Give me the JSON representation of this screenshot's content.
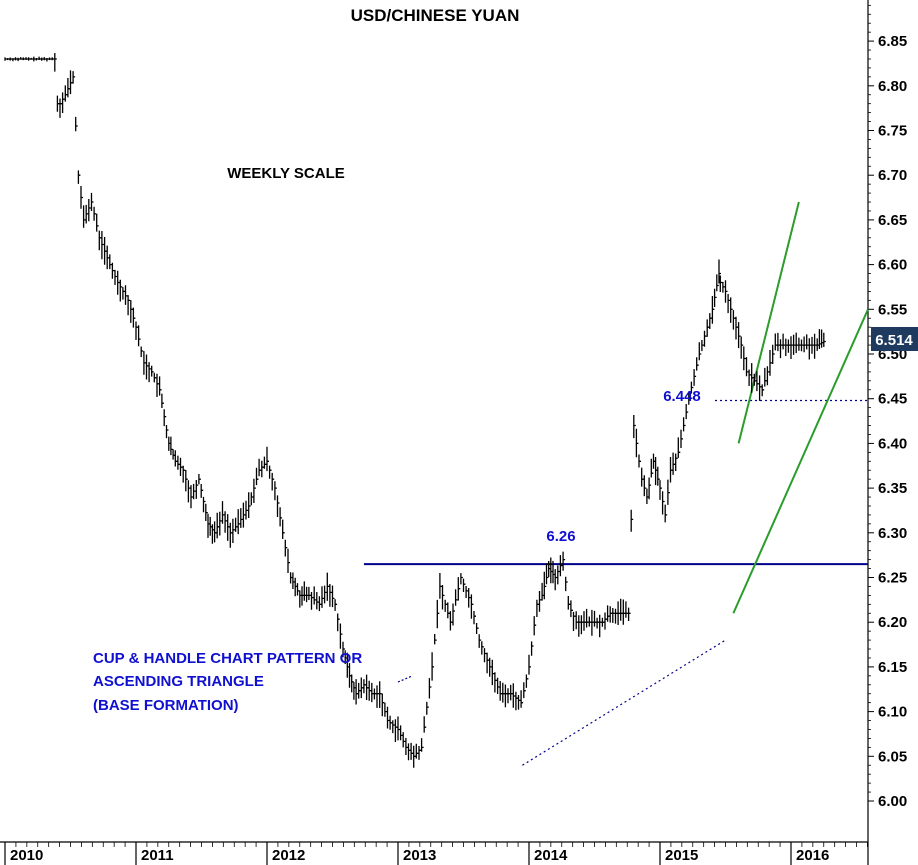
{
  "chart_data": {
    "type": "line",
    "title": "USD/CHINESE YUAN",
    "scale_note": "WEEKLY SCALE",
    "xlabel": "",
    "ylabel": "",
    "ylim": [
      5.96,
      6.92
    ],
    "xlim": [
      2010.0,
      2016.6
    ],
    "y_ticks": [
      "6.00",
      "6.05",
      "6.10",
      "6.15",
      "6.20",
      "6.25",
      "6.30",
      "6.35",
      "6.40",
      "6.45",
      "6.50",
      "6.55",
      "6.60",
      "6.65",
      "6.70",
      "6.75",
      "6.80",
      "6.85"
    ],
    "x_ticks": [
      "2010",
      "2011",
      "2012",
      "2013",
      "2014",
      "2015",
      "2016"
    ],
    "grid": false,
    "series": [
      {
        "x": [
          2010.0,
          2010.1,
          2010.2,
          2010.3,
          2010.38,
          2010.4,
          2010.42,
          2010.46,
          2010.52,
          2010.56,
          2010.6,
          2010.66,
          2010.72,
          2010.8,
          2010.86,
          2010.94,
          2011.0,
          2011.06,
          2011.12,
          2011.18,
          2011.25,
          2011.3,
          2011.36,
          2011.42,
          2011.48,
          2011.55,
          2011.6,
          2011.66,
          2011.72,
          2011.78,
          2011.86,
          2011.94,
          2012.0,
          2012.06,
          2012.12,
          2012.18,
          2012.25,
          2012.32,
          2012.4,
          2012.46,
          2012.52,
          2012.58,
          2012.63,
          2012.68,
          2012.74,
          2012.8,
          2012.86,
          2012.92,
          2013.0,
          2013.06,
          2013.12,
          2013.18,
          2013.26,
          2013.32,
          2013.4,
          2013.48,
          2013.56,
          2013.62,
          2013.7,
          2013.78,
          2013.86,
          2013.94,
          2014.0,
          2014.06,
          2014.1,
          2014.15,
          2014.2,
          2014.26,
          2014.3,
          2014.36,
          2014.42,
          2014.48,
          2014.56,
          2014.62,
          2014.7,
          2014.76,
          2014.8,
          2014.86,
          2014.9,
          2014.95,
          2015.0,
          2015.04,
          2015.08,
          2015.14,
          2015.22,
          2015.3,
          2015.4,
          2015.45,
          2015.46,
          2015.5,
          2015.56,
          2015.62,
          2015.66,
          2015.72,
          2015.78,
          2015.84,
          2015.88,
          2015.9,
          2015.94,
          2015.98,
          2016.04,
          2016.08,
          2016.12,
          2016.16,
          2016.2,
          2016.25
        ],
        "values": [
          6.83,
          6.83,
          6.83,
          6.83,
          6.83,
          6.78,
          6.78,
          6.79,
          6.81,
          6.7,
          6.65,
          6.67,
          6.63,
          6.6,
          6.58,
          6.56,
          6.53,
          6.49,
          6.48,
          6.46,
          6.4,
          6.38,
          6.37,
          6.34,
          6.36,
          6.31,
          6.3,
          6.32,
          6.3,
          6.31,
          6.33,
          6.37,
          6.38,
          6.35,
          6.3,
          6.25,
          6.23,
          6.23,
          6.22,
          6.24,
          6.22,
          6.17,
          6.14,
          6.12,
          6.13,
          6.12,
          6.12,
          6.09,
          6.08,
          6.06,
          6.05,
          6.06,
          6.15,
          6.24,
          6.2,
          6.25,
          6.22,
          6.18,
          6.15,
          6.12,
          6.12,
          6.11,
          6.15,
          6.22,
          6.23,
          6.26,
          6.25,
          6.27,
          6.22,
          6.2,
          6.2,
          6.2,
          6.2,
          6.21,
          6.21,
          6.21,
          6.42,
          6.36,
          6.34,
          6.38,
          6.35,
          6.32,
          6.37,
          6.39,
          6.45,
          6.5,
          6.55,
          6.59,
          6.58,
          6.57,
          6.54,
          6.51,
          6.48,
          6.47,
          6.46,
          6.49,
          6.51,
          6.51,
          6.51,
          6.51,
          6.51,
          6.51,
          6.51,
          6.51,
          6.51,
          6.514
        ]
      }
    ],
    "last_value_label": "6.514",
    "lines": [
      {
        "type": "resistance",
        "y": 6.265,
        "x_start": 2012.74,
        "x_end": 2016.6
      },
      {
        "type": "breakout-dotted",
        "y": 6.448,
        "x_start": 2015.42,
        "x_end": 2016.6
      },
      {
        "type": "rising-support-dotted",
        "x1": 2013.95,
        "y1": 6.04,
        "x2": 2015.5,
        "y2": 6.18
      }
    ],
    "channel": [
      {
        "x1": 2015.6,
        "y1": 6.4,
        "x2": 2016.06,
        "y2": 6.67
      },
      {
        "x1": 2015.56,
        "y1": 6.21,
        "x2": 2016.6,
        "y2": 6.55
      }
    ],
    "annotations": {
      "resistance_label": "6.26",
      "breakout_label": "6.448",
      "pattern_lines": [
        "CUP & HANDLE CHART PATTERN OR",
        "ASCENDING TRIANGLE",
        "(BASE FORMATION)"
      ]
    },
    "colors": {
      "price": "#000000",
      "resistance": "#00008b",
      "channel": "#2a9d2a",
      "annotation": "#1010d0",
      "last_label_bg": "#1e3a5f"
    }
  }
}
